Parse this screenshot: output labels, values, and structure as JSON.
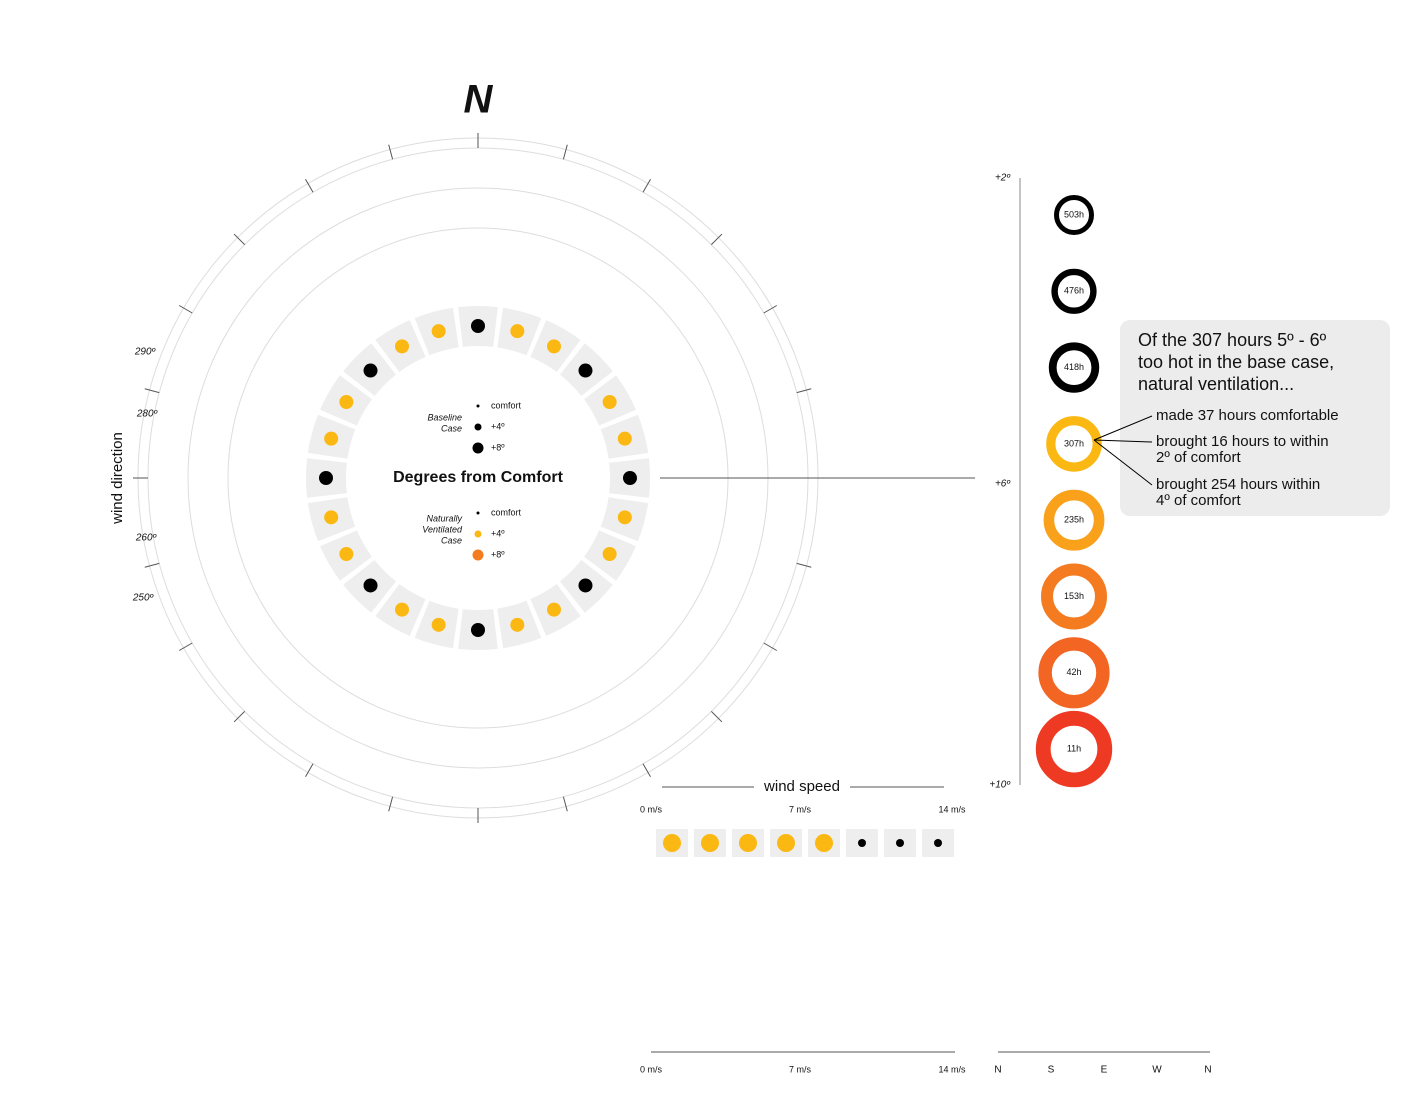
{
  "title": "N",
  "center_label": "Degrees from Comfort",
  "axis_label": "wind direction",
  "direction_ticks": [
    "290º",
    "280º",
    "260º",
    "250º"
  ],
  "legend": {
    "baseline": {
      "title": [
        "Baseline",
        "Case"
      ],
      "items": [
        "comfort",
        "+4º",
        "+8º"
      ]
    },
    "ventilated": {
      "title": [
        "Naturally",
        "Ventilated",
        "Case"
      ],
      "items": [
        "comfort",
        "+4º",
        "+8º"
      ]
    }
  },
  "wind_speed": {
    "label": "wind speed",
    "ticks": [
      "0 m/s",
      "7 m/s",
      "14 m/s"
    ]
  },
  "direction_axis": [
    "N",
    "S",
    "E",
    "W",
    "N"
  ],
  "scale_ticks": [
    "+2º",
    "+6º",
    "+10º"
  ],
  "chart_data": {
    "type": "donut",
    "values": [
      503,
      476,
      418,
      307,
      235,
      153,
      42,
      11
    ],
    "value_labels": [
      "503h",
      "476h",
      "418h",
      "307h",
      "235h",
      "153h",
      "42h",
      "11h"
    ],
    "colors": [
      "#000000",
      "#000000",
      "#000000",
      "#fbb812",
      "#f9a11b",
      "#f47b20",
      "#f26522",
      "#ee3a23"
    ]
  },
  "callout": {
    "text": [
      "Of the 307 hours 5º - 6º",
      "too hot in the base case,",
      "natural ventilation..."
    ],
    "notes": [
      [
        "made 37 hours comfortable"
      ],
      [
        "brought 16 hours to within",
        "2º of comfort"
      ],
      [
        "brought 254 hours within",
        "4º of comfort"
      ]
    ]
  }
}
